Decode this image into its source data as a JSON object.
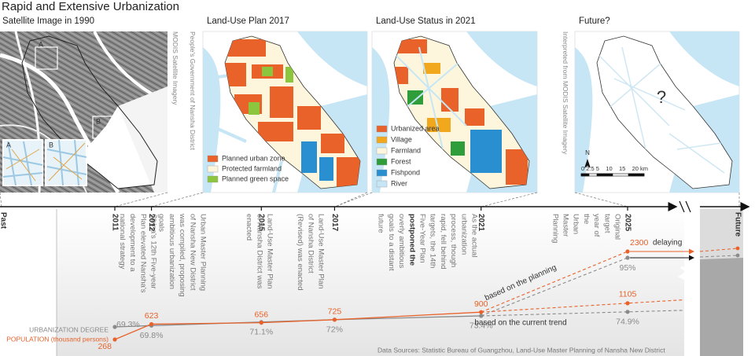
{
  "header": {
    "title": "Rapid and Extensive Urbanization"
  },
  "panels": [
    {
      "title": "Satellite Image in 1990",
      "note": "MODIS Satellite Imagery",
      "insets": [
        "A",
        "B"
      ]
    },
    {
      "title": "Land-Use Plan 2017",
      "note": "People's Government of Nansha District",
      "legend": [
        {
          "label": "Planned urban zone",
          "color": "#e8622a"
        },
        {
          "label": "Protected farmland",
          "color": "#fdf6dc"
        },
        {
          "label": "Planned green space",
          "color": "#8cc63f"
        }
      ]
    },
    {
      "title": "Land-Use Status in 2021",
      "legend": [
        {
          "label": "Urbanized area",
          "color": "#e8622a"
        },
        {
          "label": "Village",
          "color": "#f2a81d"
        },
        {
          "label": "Farmland",
          "color": "#fdf6dc"
        },
        {
          "label": "Forest",
          "color": "#2e9d3a"
        },
        {
          "label": "Fishpond",
          "color": "#2a8fd0"
        },
        {
          "label": "River",
          "color": "#c6e6f5"
        }
      ]
    },
    {
      "title": "Future?",
      "note": "Interpreted from MODIS Satellite Imagery",
      "mark": "?",
      "north": "N",
      "scale": "0 2.5 5    10    15    20 km"
    }
  ],
  "timeline": {
    "start": "Past",
    "end": "Future",
    "events": [
      {
        "lines": [
          "China's 12th Five-year",
          "Plan elevated Nansha's",
          "development to a",
          "national strategy"
        ]
      },
      {
        "lines": [
          "Urban Master Planning",
          "of Nansha New District",
          "was compiled, proposing",
          "ambitious urbanization",
          "goals"
        ]
      },
      {
        "lines": [
          "Land-Use Master Plan",
          "of Nansha District was",
          "enacted"
        ]
      },
      {
        "lines": [
          "Land-Use Master Plan",
          "of Nansha District",
          "(Revised) was enacted"
        ]
      },
      {
        "lines": [
          "As the actual",
          "urbanization",
          "process, though",
          "rapid, fell behind",
          "targets, the 14th",
          "Five-Year Plan",
          "postponed the",
          "overly ambitious",
          "goals to a distant",
          "future"
        ]
      },
      {
        "lines": [
          "Original",
          "target",
          "year of",
          "the",
          "Urban",
          "Master",
          "Planning"
        ]
      }
    ]
  },
  "chart_data": {
    "type": "line",
    "x": [
      2011,
      2012,
      2015,
      2017,
      2021,
      2025
    ],
    "series": [
      {
        "name": "URBANIZATION DEGREE",
        "color": "#8a8a8a",
        "values": [
          69.3,
          69.8,
          71.1,
          72,
          73.4,
          null
        ],
        "value_labels": [
          "69.3%",
          "69.8%",
          "71.1%",
          "72%",
          "73.4%",
          null
        ]
      },
      {
        "name": "POPULATION (thousand persons)",
        "color": "#e8622a",
        "values": [
          268,
          623,
          656,
          725,
          900,
          null
        ]
      }
    ],
    "projections": [
      {
        "label": "based on the planning",
        "population": 2300,
        "urbanization": 95,
        "urbanization_label": "95%",
        "note": "delaying"
      },
      {
        "label": "based on the current trend",
        "population": 1105,
        "urbanization": 74.9,
        "urbanization_label": "74.9%"
      }
    ]
  },
  "source": "Data Sources: Statistic Bureau of Guangzhou, Land-Use Master Planning of Nansha New District"
}
